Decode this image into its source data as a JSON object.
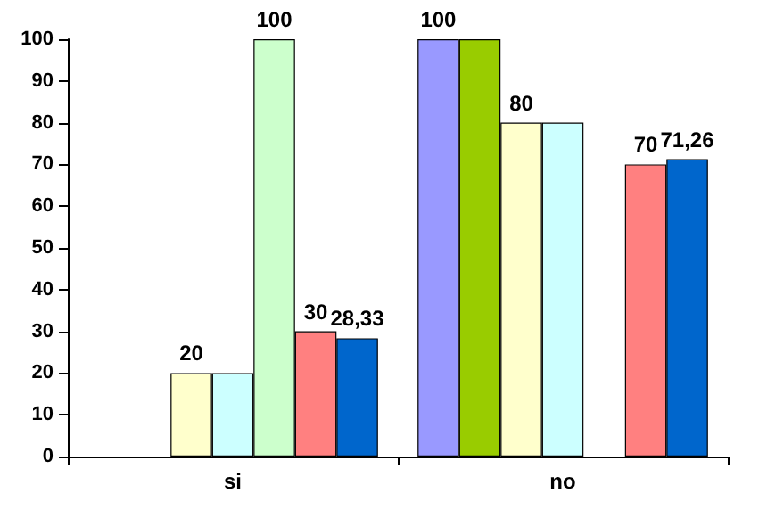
{
  "chart_data": {
    "type": "bar",
    "categories": [
      "si",
      "no"
    ],
    "series": [
      {
        "color": "#9999ff",
        "values": [
          0,
          100
        ],
        "value_labels": [
          null,
          "100"
        ]
      },
      {
        "color": "#99cc00",
        "values": [
          0,
          100
        ],
        "value_labels": [
          null,
          null
        ]
      },
      {
        "color": "#ffffcc",
        "values": [
          20,
          80
        ],
        "value_labels": [
          "20",
          "80"
        ]
      },
      {
        "color": "#ccffff",
        "values": [
          20,
          80
        ],
        "value_labels": [
          null,
          null
        ]
      },
      {
        "color": "#ccffcc",
        "values": [
          100,
          0
        ],
        "value_labels": [
          "100",
          null
        ]
      },
      {
        "color": "#ff8080",
        "values": [
          30,
          70
        ],
        "value_labels": [
          "30",
          "70"
        ]
      },
      {
        "color": "#0066cc",
        "values": [
          28.33,
          71.26
        ],
        "value_labels": [
          "28,33",
          "71,26"
        ]
      }
    ],
    "ylim": [
      0,
      100
    ],
    "yticks": [
      0,
      10,
      20,
      30,
      40,
      50,
      60,
      70,
      80,
      90,
      100
    ],
    "grid": false
  }
}
